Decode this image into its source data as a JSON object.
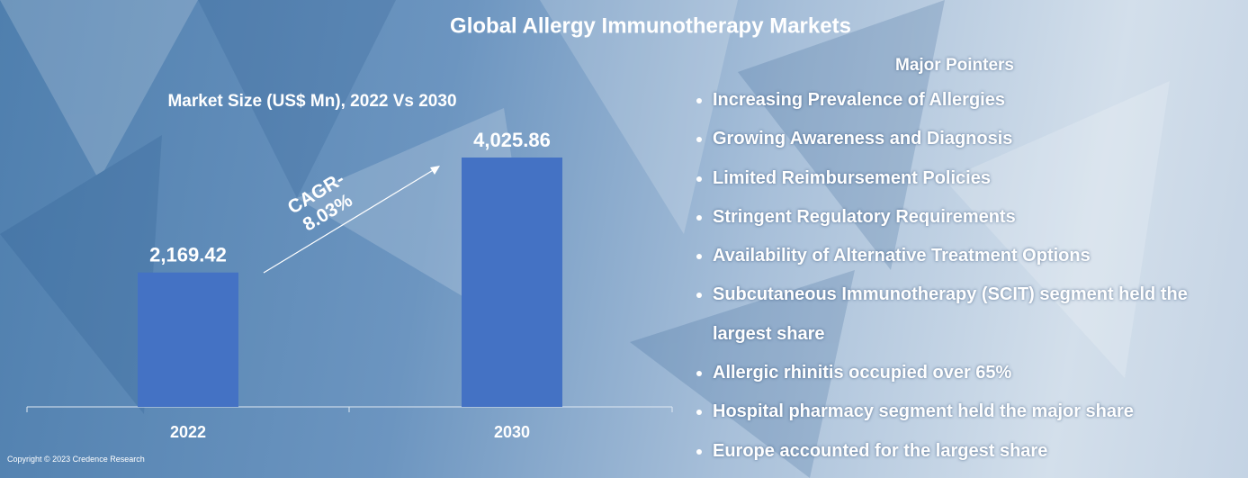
{
  "chart_data": {
    "type": "bar",
    "title": "Global Allergy Immunotherapy Markets",
    "subtitle": "Market Size (US$ Mn), 2022 Vs 2030",
    "categories": [
      "2022",
      "2030"
    ],
    "values": [
      2169.42,
      4025.86
    ],
    "value_labels": [
      "2,169.42",
      "4,025.86"
    ],
    "color": "#4472c4",
    "annotation": [
      "CAGR-",
      "8.03%"
    ]
  },
  "pointers": {
    "heading": "Major Pointers",
    "items": [
      "Increasing Prevalence of Allergies",
      "Growing Awareness and Diagnosis",
      "Limited Reimbursement Policies",
      "Stringent Regulatory Requirements",
      "Availability of Alternative Treatment Options",
      "Subcutaneous Immunotherapy (SCIT) segment held the largest share",
      "Allergic rhinitis occupied over 65%",
      "Hospital pharmacy segment held the major share",
      "Europe accounted for the largest share"
    ]
  },
  "footer": "Copyright © 2023 Credence Research"
}
